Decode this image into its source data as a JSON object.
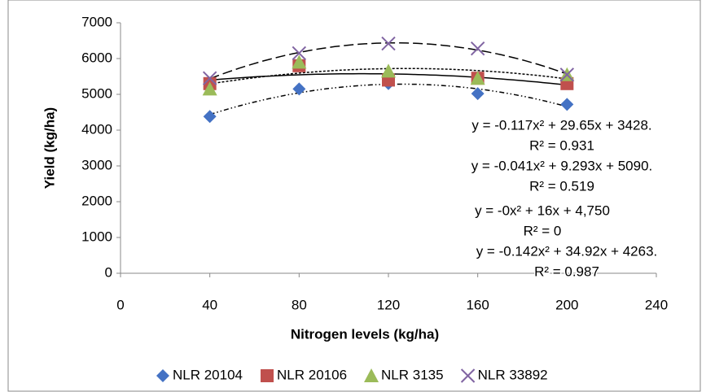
{
  "chart_data": {
    "type": "scatter",
    "x_label": "Nitrogen levels (kg/ha)",
    "y_label": "Yield (kg/ha)",
    "x": [
      40,
      80,
      120,
      160,
      200
    ],
    "xlim": [
      0,
      240
    ],
    "xticks": [
      0,
      40,
      80,
      120,
      160,
      200,
      240
    ],
    "ylim": [
      0,
      7000
    ],
    "yticks": [
      0,
      1000,
      2000,
      3000,
      4000,
      5000,
      6000,
      7000
    ],
    "series": [
      {
        "name": "NLR 20104",
        "color": "#4472c4",
        "marker": "diamond",
        "trendline": "6 3 1.5 3 1.5 3",
        "values": [
          4380,
          5150,
          5300,
          5020,
          4720
        ]
      },
      {
        "name": "NLR 20106",
        "color": "#c0504d",
        "marker": "square",
        "trendline": "none",
        "values": [
          5300,
          5800,
          5400,
          5450,
          5300
        ]
      },
      {
        "name": "NLR 3135",
        "color": "#9bbb59",
        "marker": "triangle",
        "trendline": "3 2",
        "values": [
          5150,
          5900,
          5650,
          5450,
          5550
        ]
      },
      {
        "name": "NLR 33892",
        "color": "#8064a2",
        "marker": "cross",
        "trendline": "12 5",
        "values": [
          5450,
          6150,
          6420,
          6280,
          5550
        ]
      }
    ],
    "annotations": [
      "y = -0.117x² + 29.65x + 3428.",
      "R² = 0.931",
      "y = -0.041x² + 9.293x + 5090.",
      "R² = 0.519",
      "y = -0x² + 16x + 4,750",
      "R² = 0",
      "y = -0.142x² + 34.92x + 4263.",
      "R² = 0.987"
    ]
  }
}
